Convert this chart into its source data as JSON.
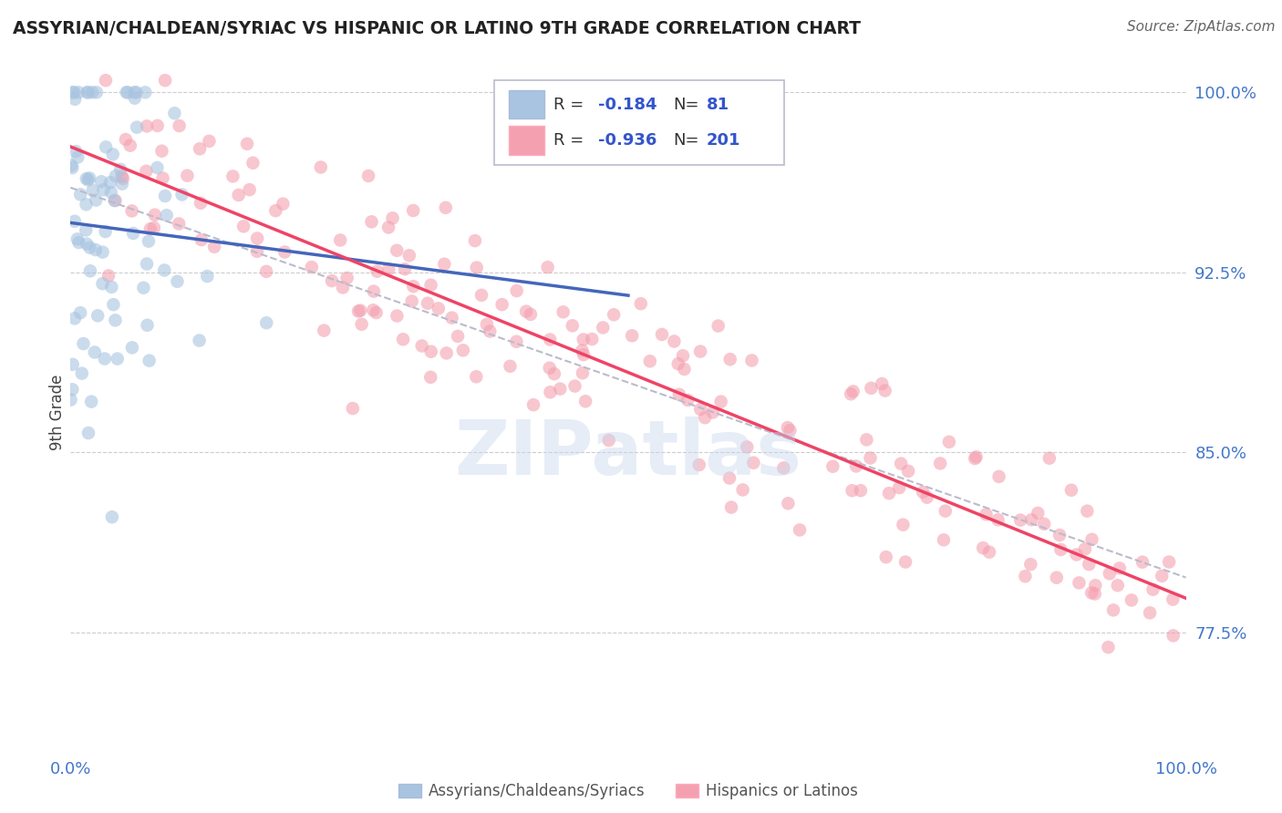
{
  "title": "ASSYRIAN/CHALDEAN/SYRIAC VS HISPANIC OR LATINO 9TH GRADE CORRELATION CHART",
  "source": "Source: ZipAtlas.com",
  "ylabel": "9th Grade",
  "blue_R": -0.184,
  "blue_N": 81,
  "pink_R": -0.936,
  "pink_N": 201,
  "blue_color": "#A8C4E0",
  "pink_color": "#F4A0B0",
  "blue_line_color": "#4466BB",
  "pink_line_color": "#EE4466",
  "dashed_line_color": "#BBBBCC",
  "xlim": [
    0.0,
    1.0
  ],
  "ylim": [
    0.725,
    1.008
  ],
  "yticks": [
    0.775,
    0.85,
    0.925,
    1.0
  ],
  "ytick_labels": [
    "77.5%",
    "85.0%",
    "92.5%",
    "100.0%"
  ],
  "xtick_labels": [
    "0.0%",
    "100.0%"
  ],
  "background_color": "#FFFFFF",
  "watermark_text": "ZIPatlas",
  "tick_color": "#4477CC",
  "legend_text_color": "#333333",
  "legend_value_color": "#3355CC",
  "blue_scatter_seed": 10,
  "pink_scatter_seed": 77,
  "bottom_legend_blue": "Assyrians/Chaldeans/Syriacs",
  "bottom_legend_pink": "Hispanics or Latinos"
}
